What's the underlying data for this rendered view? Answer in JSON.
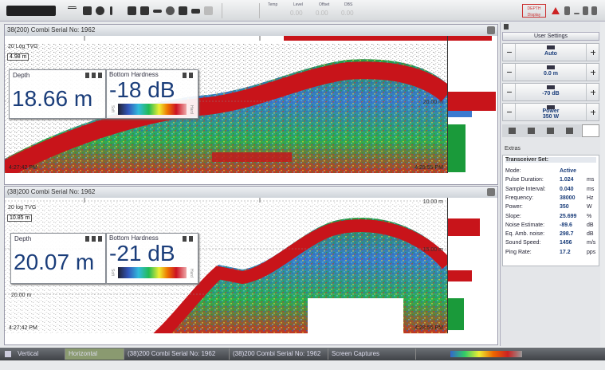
{
  "toolbar": {
    "status_labels": [
      "Temp",
      "Level",
      "Offset",
      "DBS"
    ],
    "status_values": [
      "0.00",
      "0.00",
      "0.00"
    ],
    "depth_button": "DEPTH Display"
  },
  "panels": [
    {
      "title": "38(200) Combi Serial No: 1962",
      "tvg": "20 Log TVG",
      "range_box": "4.98 m",
      "depth": {
        "label": "Depth",
        "value": "18.66 m"
      },
      "hardness": {
        "label": "Bottom Hardness",
        "value": "-18 dB",
        "soft": "Soft",
        "hard": "Hard"
      },
      "depth_markers": [
        "20.00 m"
      ],
      "time_start": "4:27:42 PM",
      "time_end": "4:28:55 PM"
    },
    {
      "title": "(38)200 Combi Serial No: 1962",
      "tvg": "20 log TVG",
      "range_box": "10.85 m",
      "depth": {
        "label": "Depth",
        "value": "20.07 m"
      },
      "hardness": {
        "label": "Bottom Hardness",
        "value": "-21 dB",
        "soft": "Soft",
        "hard": "Hard"
      },
      "depth_markers": [
        "10.00 m",
        "15.00 m",
        "20.00 m"
      ],
      "time_start": "4:27:42 PM",
      "time_end": "4:28:55 PM"
    }
  ],
  "side_panel": {
    "user_settings": "User Settings",
    "controls": [
      [
        "Auto"
      ],
      [
        "0.0 m"
      ],
      [
        "-70 dB"
      ],
      [
        "Power",
        "350 W"
      ]
    ],
    "extras": "Extras",
    "transceiver_title": "Transceiver Set:",
    "rows": [
      [
        "Mode:",
        "Active",
        ""
      ],
      [
        "Pulse Duration:",
        "1.024",
        "ms"
      ],
      [
        "Sample Interval:",
        "0.040",
        "ms"
      ],
      [
        "Frequency:",
        "38000",
        "Hz"
      ],
      [
        "Power:",
        "350",
        "W"
      ],
      [
        "Slope:",
        "25.699",
        "%"
      ],
      [
        "Noise Estimate:",
        "-89.6",
        "dB"
      ],
      [
        "Eq. Amb. noise:",
        "298.7",
        "dB"
      ],
      [
        "Sound Speed:",
        "1456",
        "m/s"
      ],
      [
        "Ping Rate:",
        "17.2",
        "pps"
      ]
    ]
  },
  "taskbar": {
    "tabs": [
      "Vertical",
      "Horizontal",
      "(38)200 Combi Serial No: 1962",
      "(38)200 Combi Serial No: 1962",
      "Screen Captures"
    ]
  }
}
